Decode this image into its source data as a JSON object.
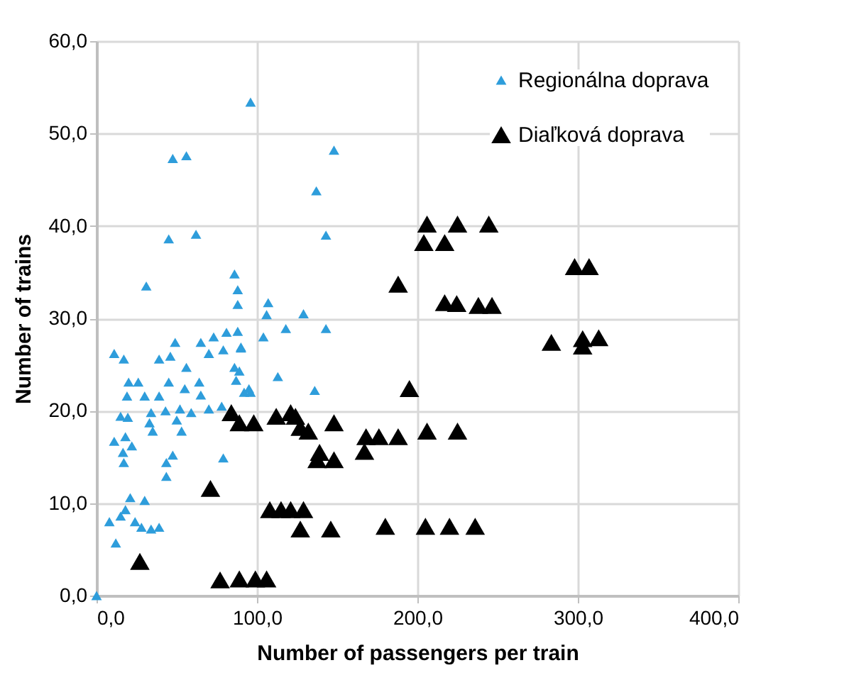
{
  "chart_data": {
    "type": "scatter",
    "xlabel": "Number of passengers per train",
    "ylabel": "Number of trains",
    "marker": "triangle",
    "grid": true,
    "legend": "top right",
    "xlim": [
      0,
      400
    ],
    "ylim": [
      0,
      60
    ],
    "xticks": [
      {
        "value": 0,
        "label": "0,0"
      },
      {
        "value": 100,
        "label": "100,0"
      },
      {
        "value": 200,
        "label": "200,0"
      },
      {
        "value": 300,
        "label": "300,0"
      },
      {
        "value": 400,
        "label": "400,0"
      }
    ],
    "yticks": [
      {
        "value": 0,
        "label": "0,0"
      },
      {
        "value": 10,
        "label": "10,0"
      },
      {
        "value": 20,
        "label": "20,0"
      },
      {
        "value": 30,
        "label": "30,0"
      },
      {
        "value": 40,
        "label": "40,0"
      },
      {
        "value": 50,
        "label": "50,0"
      },
      {
        "value": 60,
        "label": "60,0"
      }
    ],
    "series": [
      {
        "name": "Regionálna doprava",
        "color": "#2e9ddb",
        "x": [
          0,
          96,
          47.5,
          56,
          45,
          62,
          31,
          86,
          88,
          88,
          11,
          17,
          49,
          65,
          73,
          81,
          88,
          39,
          46,
          70,
          79,
          90,
          56,
          45,
          86,
          87,
          20,
          26,
          19,
          30,
          39,
          55,
          64,
          65,
          92,
          96,
          15,
          19.5,
          34,
          43,
          52,
          59,
          70,
          78,
          33,
          50,
          35,
          53,
          11,
          18,
          22,
          16.5,
          17,
          47.5,
          43.5,
          79,
          43.5,
          21,
          30,
          18,
          8,
          15,
          24,
          28,
          34,
          39,
          12,
          148,
          137,
          143,
          107,
          106,
          129,
          118,
          143,
          104,
          90,
          113,
          136,
          89,
          95
        ],
        "values": [
          0,
          53.4,
          47.3,
          47.6,
          38.6,
          39.1,
          33.5,
          34.8,
          33.1,
          31.5,
          26.2,
          25.6,
          27.4,
          27.4,
          28,
          28.5,
          28.6,
          25.6,
          25.9,
          26.2,
          26.6,
          26.8,
          24.7,
          23.1,
          24.7,
          23.3,
          23.1,
          23.1,
          21.6,
          21.6,
          21.6,
          22.4,
          23.1,
          21.7,
          22,
          22,
          19.4,
          19.3,
          19.8,
          20,
          20.2,
          19.8,
          20.2,
          20.5,
          18.7,
          19,
          17.8,
          17.8,
          16.7,
          17.2,
          16.2,
          15.5,
          14.4,
          15.2,
          14.4,
          14.9,
          12.9,
          10.6,
          10.3,
          9.3,
          8,
          8.6,
          8,
          7.4,
          7.2,
          7.4,
          5.7,
          48.2,
          43.8,
          39,
          31.7,
          30.4,
          30.5,
          28.9,
          28.9,
          28,
          26.9,
          23.7,
          22.2,
          24.3,
          22.4
        ]
      },
      {
        "name": "Diaľková doprava",
        "color": "#000000",
        "x": [
          27,
          71,
          77,
          89,
          99,
          106,
          84,
          89,
          98,
          112,
          121,
          124,
          127,
          132,
          139,
          137.5,
          148,
          148,
          168,
          176,
          188,
          167,
          108,
          115,
          121,
          129,
          127,
          146,
          180,
          188,
          195,
          206,
          225,
          244.5,
          204,
          217,
          217,
          224.5,
          238,
          246.5,
          298,
          307,
          283.5,
          303,
          313,
          303,
          206,
          225,
          205,
          220,
          236
        ],
        "values": [
          3.7,
          11.6,
          1.7,
          1.8,
          1.8,
          1.8,
          19.8,
          18.7,
          18.7,
          19.4,
          19.8,
          19.4,
          18.2,
          17.8,
          15.5,
          14.7,
          18.7,
          14.7,
          17.2,
          17.2,
          17.2,
          15.6,
          9.3,
          9.3,
          9.3,
          9.3,
          7.2,
          7.2,
          7.5,
          33.7,
          22.4,
          40.2,
          40.2,
          40.2,
          38.2,
          38.2,
          31.7,
          31.6,
          31.4,
          31.4,
          35.6,
          35.6,
          27.4,
          27.8,
          27.9,
          27,
          17.8,
          17.8,
          7.5,
          7.5,
          7.5
        ]
      }
    ]
  }
}
